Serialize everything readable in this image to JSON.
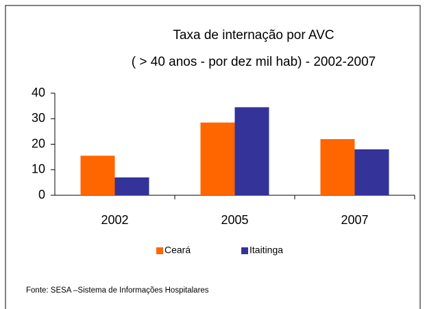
{
  "chart_data": {
    "type": "bar",
    "title": "Taxa de internação por AVC",
    "subtitle": "( > 40 anos - por dez mil hab) - 2002-2007",
    "categories": [
      "2002",
      "2005",
      "2007"
    ],
    "series": [
      {
        "name": "Ceará",
        "color": "#ff6600",
        "values": [
          15.5,
          28.5,
          22
        ]
      },
      {
        "name": "Itaitinga",
        "color": "#333399",
        "values": [
          7,
          34.5,
          18
        ]
      }
    ],
    "ylim": [
      0,
      40
    ],
    "yticks": [
      0,
      10,
      20,
      30,
      40
    ],
    "legend": "bottom",
    "source": "Fonte: SESA –Sistema de Informações Hospitalares"
  }
}
